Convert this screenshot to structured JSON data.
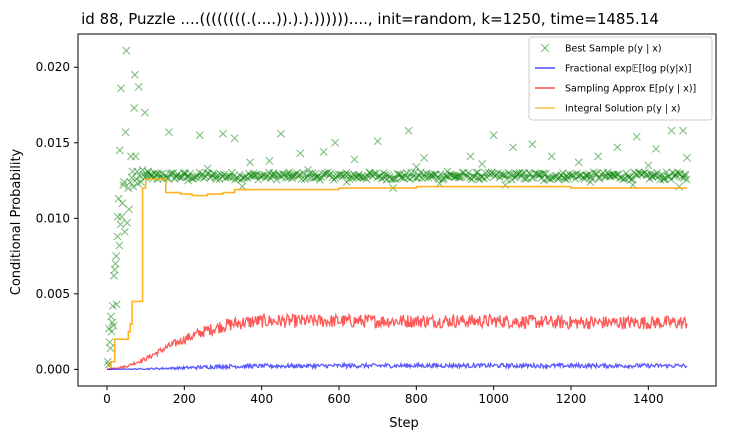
{
  "chart_data": {
    "type": "line",
    "title": "id 88, Puzzle ....((((((((.(....)).).).))))))...., init=random, k=1250, time=1485.14",
    "xlabel": "Step",
    "ylabel": "Conditional Probability",
    "xlim": [
      -75,
      1575
    ],
    "ylim": [
      -0.0011,
      0.0222
    ],
    "xticks": [
      0,
      200,
      400,
      600,
      800,
      1000,
      1200,
      1400
    ],
    "yticks": [
      0.0,
      0.005,
      0.01,
      0.015,
      0.02
    ],
    "ytick_labels": [
      "0.000",
      "0.005",
      "0.010",
      "0.015",
      "0.020"
    ],
    "grid": false,
    "legend_position": "top-right",
    "colors": {
      "best_sample": "#008000",
      "fractional": "#0000ff",
      "sampling": "#ff0000",
      "integral": "#ffa500"
    },
    "legend": [
      {
        "key": "best",
        "label": "Best Sample p(y | x)",
        "marker": "x",
        "color": "#008000"
      },
      {
        "key": "fractional",
        "label": "Fractional exp𝔼[log p(y|x)]",
        "marker": "line",
        "color": "#0000ff"
      },
      {
        "key": "sampling",
        "label": "Sampling Approx E[p(y | x)]",
        "marker": "line",
        "color": "#ff0000"
      },
      {
        "key": "integral",
        "label": "Integral Solution p(y | x)",
        "marker": "line",
        "color": "#ffa500"
      }
    ],
    "series": [
      {
        "name": "Integral Solution p(y | x)",
        "kind": "step",
        "points": [
          [
            0,
            0.0002
          ],
          [
            10,
            0.0005
          ],
          [
            20,
            0.002
          ],
          [
            55,
            0.0025
          ],
          [
            60,
            0.003
          ],
          [
            65,
            0.0045
          ],
          [
            90,
            0.0045
          ],
          [
            92,
            0.012
          ],
          [
            100,
            0.0126
          ],
          [
            150,
            0.0126
          ],
          [
            152,
            0.0117
          ],
          [
            190,
            0.0116
          ],
          [
            220,
            0.0115
          ],
          [
            260,
            0.0116
          ],
          [
            300,
            0.0117
          ],
          [
            330,
            0.0119
          ],
          [
            400,
            0.0119
          ],
          [
            600,
            0.012
          ],
          [
            800,
            0.0121
          ],
          [
            1000,
            0.0121
          ],
          [
            1200,
            0.012
          ],
          [
            1500,
            0.012
          ]
        ]
      },
      {
        "name": "Sampling Approx E[p(y | x)]",
        "kind": "line",
        "points": [
          [
            0,
            0.0
          ],
          [
            50,
            0.0002
          ],
          [
            100,
            0.0007
          ],
          [
            150,
            0.0014
          ],
          [
            200,
            0.002
          ],
          [
            250,
            0.0025
          ],
          [
            300,
            0.0029
          ],
          [
            350,
            0.0031
          ],
          [
            400,
            0.0032
          ],
          [
            600,
            0.0032
          ],
          [
            800,
            0.0032
          ],
          [
            1000,
            0.0032
          ],
          [
            1200,
            0.0031
          ],
          [
            1400,
            0.0031
          ],
          [
            1500,
            0.0031
          ]
        ]
      },
      {
        "name": "Fractional exp𝔼[log p(y|x)]",
        "kind": "line",
        "points": [
          [
            0,
            0.0
          ],
          [
            100,
            3e-05
          ],
          [
            200,
            0.0001
          ],
          [
            300,
            0.0002
          ],
          [
            400,
            0.00022
          ],
          [
            600,
            0.00024
          ],
          [
            800,
            0.00025
          ],
          [
            1000,
            0.00025
          ],
          [
            1200,
            0.00024
          ],
          [
            1500,
            0.00024
          ]
        ]
      }
    ],
    "best_sample_points": [
      [
        2,
        0.0005
      ],
      [
        4,
        0.0003
      ],
      [
        5,
        0.0027
      ],
      [
        7,
        0.0018
      ],
      [
        9,
        0.0014
      ],
      [
        10,
        0.0035
      ],
      [
        12,
        0.0025
      ],
      [
        14,
        0.0031
      ],
      [
        15,
        0.0042
      ],
      [
        17,
        0.0029
      ],
      [
        18,
        0.0062
      ],
      [
        20,
        0.0066
      ],
      [
        22,
        0.007
      ],
      [
        24,
        0.0075
      ],
      [
        25,
        0.0043
      ],
      [
        27,
        0.0088
      ],
      [
        28,
        0.0101
      ],
      [
        30,
        0.0113
      ],
      [
        32,
        0.0082
      ],
      [
        33,
        0.0145
      ],
      [
        35,
        0.0096
      ],
      [
        36,
        0.0186
      ],
      [
        38,
        0.0101
      ],
      [
        40,
        0.011
      ],
      [
        42,
        0.0122
      ],
      [
        44,
        0.0124
      ],
      [
        46,
        0.0091
      ],
      [
        48,
        0.0157
      ],
      [
        50,
        0.0211
      ],
      [
        52,
        0.0097
      ],
      [
        55,
        0.012
      ],
      [
        57,
        0.0106
      ],
      [
        60,
        0.0124
      ],
      [
        62,
        0.0141
      ],
      [
        64,
        0.0127
      ],
      [
        66,
        0.0131
      ],
      [
        68,
        0.0121
      ],
      [
        70,
        0.0173
      ],
      [
        72,
        0.0195
      ],
      [
        74,
        0.0141
      ],
      [
        76,
        0.0126
      ],
      [
        78,
        0.0131
      ],
      [
        80,
        0.0123
      ],
      [
        82,
        0.0187
      ],
      [
        85,
        0.0128
      ],
      [
        88,
        0.0124
      ],
      [
        92,
        0.0132
      ],
      [
        98,
        0.017
      ],
      [
        105,
        0.0131
      ],
      [
        115,
        0.0128
      ],
      [
        130,
        0.0126
      ],
      [
        160,
        0.0157
      ],
      [
        240,
        0.0155
      ],
      [
        300,
        0.0156
      ],
      [
        330,
        0.0153
      ],
      [
        370,
        0.0137
      ],
      [
        450,
        0.0156
      ],
      [
        500,
        0.0143
      ],
      [
        560,
        0.0144
      ],
      [
        590,
        0.015
      ],
      [
        640,
        0.0139
      ],
      [
        700,
        0.0151
      ],
      [
        780,
        0.0158
      ],
      [
        820,
        0.014
      ],
      [
        880,
        0.0131
      ],
      [
        940,
        0.0141
      ],
      [
        1000,
        0.0155
      ],
      [
        1050,
        0.0147
      ],
      [
        1100,
        0.0149
      ],
      [
        1150,
        0.0141
      ],
      [
        1220,
        0.0137
      ],
      [
        1270,
        0.0141
      ],
      [
        1320,
        0.0147
      ],
      [
        1370,
        0.0154
      ],
      [
        1420,
        0.0146
      ],
      [
        1460,
        0.0158
      ],
      [
        1490,
        0.0158
      ],
      [
        1500,
        0.014
      ],
      [
        210,
        0.0125
      ],
      [
        260,
        0.0133
      ],
      [
        350,
        0.0121
      ],
      [
        420,
        0.0138
      ],
      [
        470,
        0.0127
      ],
      [
        520,
        0.0132
      ],
      [
        620,
        0.0124
      ],
      [
        680,
        0.013
      ],
      [
        740,
        0.012
      ],
      [
        800,
        0.0134
      ],
      [
        860,
        0.0123
      ],
      [
        910,
        0.0127
      ],
      [
        970,
        0.0136
      ],
      [
        1030,
        0.0122
      ],
      [
        1080,
        0.013
      ],
      [
        1130,
        0.0125
      ],
      [
        1190,
        0.0128
      ],
      [
        1250,
        0.0124
      ],
      [
        1310,
        0.0129
      ],
      [
        1360,
        0.0122
      ],
      [
        1400,
        0.0135
      ],
      [
        1440,
        0.0126
      ],
      [
        1480,
        0.0121
      ],
      [
        180,
        0.0128
      ],
      [
        200,
        0.0129
      ],
      [
        280,
        0.0127
      ],
      [
        380,
        0.0128
      ],
      [
        430,
        0.0129
      ],
      [
        480,
        0.0128
      ],
      [
        540,
        0.0127
      ],
      [
        650,
        0.0128
      ],
      [
        720,
        0.0129
      ],
      [
        760,
        0.0127
      ],
      [
        840,
        0.0128
      ],
      [
        900,
        0.0128
      ],
      [
        960,
        0.0127
      ],
      [
        1060,
        0.0128
      ],
      [
        1120,
        0.0129
      ],
      [
        1180,
        0.0127
      ],
      [
        1240,
        0.0128
      ],
      [
        1300,
        0.0128
      ],
      [
        1350,
        0.0127
      ],
      [
        1410,
        0.0128
      ],
      [
        1470,
        0.0129
      ],
      [
        1495,
        0.0128
      ]
    ],
    "best_sample_band": {
      "x_from": 95,
      "x_to": 1500,
      "y": 0.0128
    }
  }
}
